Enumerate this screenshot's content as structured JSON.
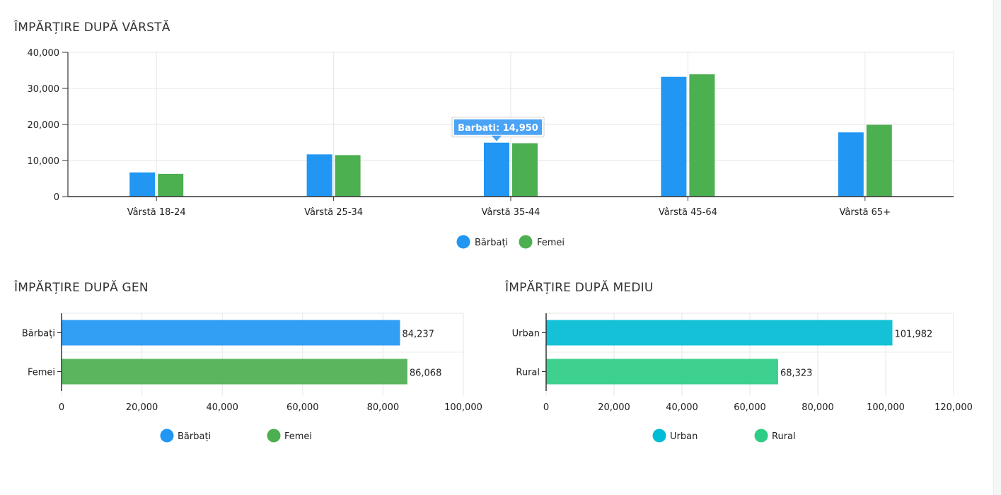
{
  "sections": {
    "age_title": "ÎMPĂRȚIRE DUPĂ VÂRSTĂ",
    "gender_title": "ÎMPĂRȚIRE DUPĂ GEN",
    "env_title": "ÎMPĂRȚIRE DUPĂ MEDIU"
  },
  "tooltip": {
    "text": "Barbati: 14,950",
    "color": "#4ba3f5"
  },
  "chart_data": [
    {
      "type": "bar",
      "title": "ÎMPĂRȚIRE DUPĂ VÂRSTĂ",
      "categories": [
        "Vârstă 18-24",
        "Vârstă 25-34",
        "Vârstă 35-44",
        "Vârstă 45-64",
        "Vârstă 65+"
      ],
      "series": [
        {
          "name": "Bărbați",
          "color": "#2196f3",
          "values": [
            6700,
            11700,
            14950,
            33200,
            17800
          ]
        },
        {
          "name": "Femei",
          "color": "#4caf50",
          "values": [
            6300,
            11500,
            14800,
            33900,
            19900
          ]
        }
      ],
      "ylim": [
        0,
        40000
      ],
      "yticks": [
        "0",
        "10,000",
        "20,000",
        "30,000",
        "40,000"
      ],
      "grid": true,
      "legend": "bottom"
    },
    {
      "type": "bar",
      "orientation": "horizontal",
      "title": "ÎMPĂRȚIRE DUPĂ GEN",
      "categories": [
        "Bărbați",
        "Femei"
      ],
      "values": [
        84237,
        86068
      ],
      "value_labels": [
        "84,237",
        "86,068"
      ],
      "colors": [
        "#2196f3",
        "#4caf50"
      ],
      "xlim": [
        0,
        100000
      ],
      "xticks": [
        "0",
        "20,000",
        "40,000",
        "60,000",
        "80,000",
        "100,000"
      ],
      "legend_items": [
        {
          "name": "Bărbați",
          "color": "#2196f3"
        },
        {
          "name": "Femei",
          "color": "#4caf50"
        }
      ],
      "grid": true,
      "legend": "bottom"
    },
    {
      "type": "bar",
      "orientation": "horizontal",
      "title": "ÎMPĂRȚIRE DUPĂ MEDIU",
      "categories": [
        "Urban",
        "Rural"
      ],
      "values": [
        101982,
        68323
      ],
      "value_labels": [
        "101,982",
        "68,323"
      ],
      "colors": [
        "#00bcd4",
        "#2ecc85"
      ],
      "xlim": [
        0,
        120000
      ],
      "xticks": [
        "0",
        "20,000",
        "40,000",
        "60,000",
        "80,000",
        "100,000",
        "120,000"
      ],
      "legend_items": [
        {
          "name": "Urban",
          "color": "#00bcd4"
        },
        {
          "name": "Rural",
          "color": "#2ecc85"
        }
      ],
      "grid": true,
      "legend": "bottom"
    }
  ]
}
